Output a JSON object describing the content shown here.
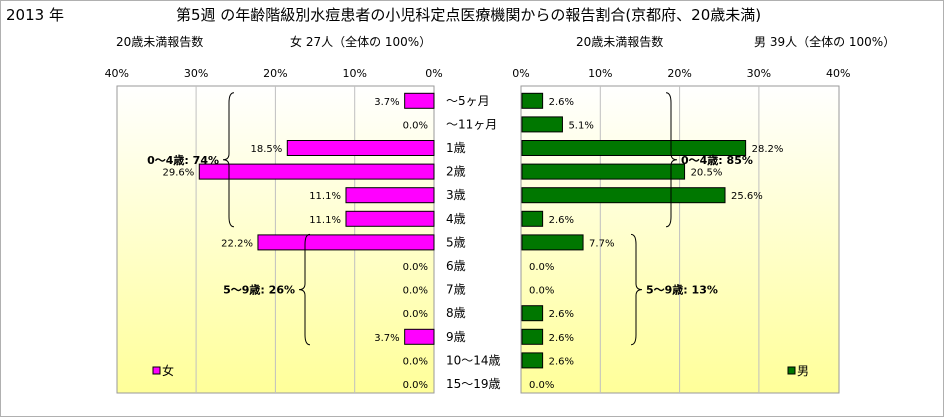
{
  "header": {
    "year": "2013 年",
    "title": "第5週 の年齢階級別水痘患者の小児科定点医療機関からの報告割合(京都府、20歳未満)",
    "left_count_label": "20歳未満報告数",
    "left_total": "女 27人（全体の 100%）",
    "right_count_label": "20歳未満報告数",
    "right_total": "男 39人（全体の 100%）"
  },
  "chart_data": {
    "type": "bar",
    "orientation": "horizontal-butterfly",
    "categories": [
      "～5ヶ月",
      "～11ヶ月",
      "1歳",
      "2歳",
      "3歳",
      "4歳",
      "5歳",
      "6歳",
      "7歳",
      "8歳",
      "9歳",
      "10～14歳",
      "15～19歳"
    ],
    "series": [
      {
        "name": "女",
        "side": "left",
        "color": "#ff00ff",
        "values": [
          3.7,
          0.0,
          18.5,
          29.6,
          11.1,
          11.1,
          22.2,
          0.0,
          0.0,
          0.0,
          3.7,
          0.0,
          0.0
        ],
        "labels": [
          "3.7%",
          "0.0%",
          "18.5%",
          "29.6%",
          "11.1%",
          "11.1%",
          "22.2%",
          "0.0%",
          "0.0%",
          "0.0%",
          "3.7%",
          "0.0%",
          "0.0%"
        ]
      },
      {
        "name": "男",
        "side": "right",
        "color": "#007700",
        "values": [
          2.6,
          5.1,
          28.2,
          20.5,
          25.6,
          2.6,
          7.7,
          0.0,
          0.0,
          2.6,
          2.6,
          2.6,
          0.0
        ],
        "labels": [
          "2.6%",
          "5.1%",
          "28.2%",
          "20.5%",
          "25.6%",
          "2.6%",
          "7.7%",
          "0.0%",
          "0.0%",
          "2.6%",
          "2.6%",
          "2.6%",
          "0.0%"
        ]
      }
    ],
    "xlim": [
      0,
      40
    ],
    "left_ticks": [
      "40%",
      "30%",
      "20%",
      "10%",
      "0%"
    ],
    "right_ticks": [
      "0%",
      "10%",
      "20%",
      "30%",
      "40%"
    ],
    "annotations": [
      {
        "text": "0～4歳: 74%",
        "side": "left",
        "from": 0,
        "to": 5
      },
      {
        "text": "5～9歳: 26%",
        "side": "left",
        "from": 6,
        "to": 10
      },
      {
        "text": "0～4歳: 85%",
        "side": "right",
        "from": 0,
        "to": 5
      },
      {
        "text": "5～9歳: 13%",
        "side": "right",
        "from": 6,
        "to": 10
      }
    ],
    "legend": [
      {
        "text": "女",
        "color": "#ff00ff",
        "placement": "bottom-left"
      },
      {
        "text": "男",
        "color": "#007700",
        "placement": "bottom-right"
      }
    ],
    "background_gradient": [
      "#ffffff",
      "#ffff99"
    ],
    "grid": true
  }
}
